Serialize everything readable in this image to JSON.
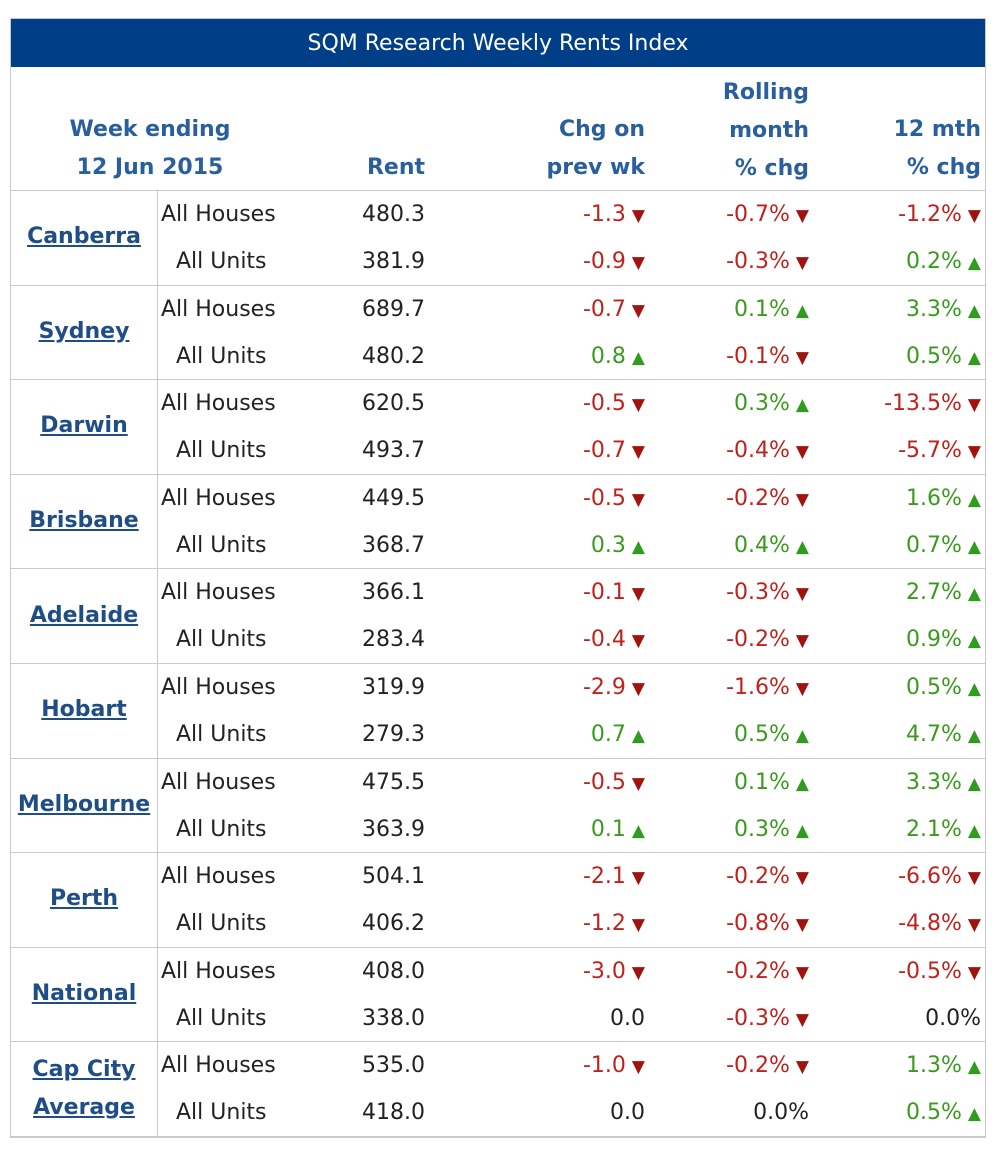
{
  "title": "SQM Research Weekly Rents Index",
  "header": {
    "week_line1": "Week ending",
    "week_line2": "12 Jun 2015",
    "rent": "Rent",
    "chg_line1": "Chg on",
    "chg_line2": "prev wk",
    "roll_line1": "Rolling",
    "roll_line2": "month",
    "roll_line3": "% chg",
    "yr_line1": "12 mth",
    "yr_line2": "% chg"
  },
  "colors": {
    "title_bg": "#003f87",
    "header_text": "#2a5f9e",
    "negative": "#c0211c",
    "positive": "#3a9a1e",
    "grid": "#c9c9c9"
  },
  "icons": {
    "down": "down-triangle-icon",
    "up": "up-triangle-icon"
  },
  "rows": [
    {
      "city_lines": [
        "Canberra"
      ],
      "houses": {
        "type": "All Houses",
        "rent": "480.3",
        "wk": "-1.3",
        "wk_dir": "down",
        "mo": "-0.7%",
        "mo_dir": "down",
        "yr": "-1.2%",
        "yr_dir": "down"
      },
      "units": {
        "type": "All Units",
        "rent": "381.9",
        "wk": "-0.9",
        "wk_dir": "down",
        "mo": "-0.3%",
        "mo_dir": "down",
        "yr": "0.2%",
        "yr_dir": "up"
      }
    },
    {
      "city_lines": [
        "Sydney"
      ],
      "houses": {
        "type": "All Houses",
        "rent": "689.7",
        "wk": "-0.7",
        "wk_dir": "down",
        "mo": "0.1%",
        "mo_dir": "up",
        "yr": "3.3%",
        "yr_dir": "up"
      },
      "units": {
        "type": "All Units",
        "rent": "480.2",
        "wk": "0.8",
        "wk_dir": "up",
        "mo": "-0.1%",
        "mo_dir": "down",
        "yr": "0.5%",
        "yr_dir": "up"
      }
    },
    {
      "city_lines": [
        "Darwin"
      ],
      "houses": {
        "type": "All Houses",
        "rent": "620.5",
        "wk": "-0.5",
        "wk_dir": "down",
        "mo": "0.3%",
        "mo_dir": "up",
        "yr": "-13.5%",
        "yr_dir": "down"
      },
      "units": {
        "type": "All Units",
        "rent": "493.7",
        "wk": "-0.7",
        "wk_dir": "down",
        "mo": "-0.4%",
        "mo_dir": "down",
        "yr": "-5.7%",
        "yr_dir": "down"
      }
    },
    {
      "city_lines": [
        "Brisbane"
      ],
      "houses": {
        "type": "All Houses",
        "rent": "449.5",
        "wk": "-0.5",
        "wk_dir": "down",
        "mo": "-0.2%",
        "mo_dir": "down",
        "yr": "1.6%",
        "yr_dir": "up"
      },
      "units": {
        "type": "All Units",
        "rent": "368.7",
        "wk": "0.3",
        "wk_dir": "up",
        "mo": "0.4%",
        "mo_dir": "up",
        "yr": "0.7%",
        "yr_dir": "up"
      }
    },
    {
      "city_lines": [
        "Adelaide"
      ],
      "houses": {
        "type": "All Houses",
        "rent": "366.1",
        "wk": "-0.1",
        "wk_dir": "down",
        "mo": "-0.3%",
        "mo_dir": "down",
        "yr": "2.7%",
        "yr_dir": "up"
      },
      "units": {
        "type": "All Units",
        "rent": "283.4",
        "wk": "-0.4",
        "wk_dir": "down",
        "mo": "-0.2%",
        "mo_dir": "down",
        "yr": "0.9%",
        "yr_dir": "up"
      }
    },
    {
      "city_lines": [
        "Hobart"
      ],
      "houses": {
        "type": "All Houses",
        "rent": "319.9",
        "wk": "-2.9",
        "wk_dir": "down",
        "mo": "-1.6%",
        "mo_dir": "down",
        "yr": "0.5%",
        "yr_dir": "up"
      },
      "units": {
        "type": "All Units",
        "rent": "279.3",
        "wk": "0.7",
        "wk_dir": "up",
        "mo": "0.5%",
        "mo_dir": "up",
        "yr": "4.7%",
        "yr_dir": "up"
      }
    },
    {
      "city_lines": [
        "Melbourne"
      ],
      "houses": {
        "type": "All Houses",
        "rent": "475.5",
        "wk": "-0.5",
        "wk_dir": "down",
        "mo": "0.1%",
        "mo_dir": "up",
        "yr": "3.3%",
        "yr_dir": "up"
      },
      "units": {
        "type": "All Units",
        "rent": "363.9",
        "wk": "0.1",
        "wk_dir": "up",
        "mo": "0.3%",
        "mo_dir": "up",
        "yr": "2.1%",
        "yr_dir": "up"
      }
    },
    {
      "city_lines": [
        "Perth"
      ],
      "houses": {
        "type": "All Houses",
        "rent": "504.1",
        "wk": "-2.1",
        "wk_dir": "down",
        "mo": "-0.2%",
        "mo_dir": "down",
        "yr": "-6.6%",
        "yr_dir": "down"
      },
      "units": {
        "type": "All Units",
        "rent": "406.2",
        "wk": "-1.2",
        "wk_dir": "down",
        "mo": "-0.8%",
        "mo_dir": "down",
        "yr": "-4.8%",
        "yr_dir": "down"
      }
    },
    {
      "city_lines": [
        "National"
      ],
      "houses": {
        "type": "All Houses",
        "rent": "408.0",
        "wk": "-3.0",
        "wk_dir": "down",
        "mo": "-0.2%",
        "mo_dir": "down",
        "yr": "-0.5%",
        "yr_dir": "down"
      },
      "units": {
        "type": "All Units",
        "rent": "338.0",
        "wk": "0.0",
        "wk_dir": "none",
        "mo": "-0.3%",
        "mo_dir": "down",
        "yr": "0.0%",
        "yr_dir": "none"
      }
    },
    {
      "city_lines": [
        "Cap City",
        "Average"
      ],
      "houses": {
        "type": "All Houses",
        "rent": "535.0",
        "wk": "-1.0",
        "wk_dir": "down",
        "mo": "-0.2%",
        "mo_dir": "down",
        "yr": "1.3%",
        "yr_dir": "up"
      },
      "units": {
        "type": "All Units",
        "rent": "418.0",
        "wk": "0.0",
        "wk_dir": "none",
        "mo": "0.0%",
        "mo_dir": "none",
        "yr": "0.5%",
        "yr_dir": "up"
      }
    }
  ]
}
